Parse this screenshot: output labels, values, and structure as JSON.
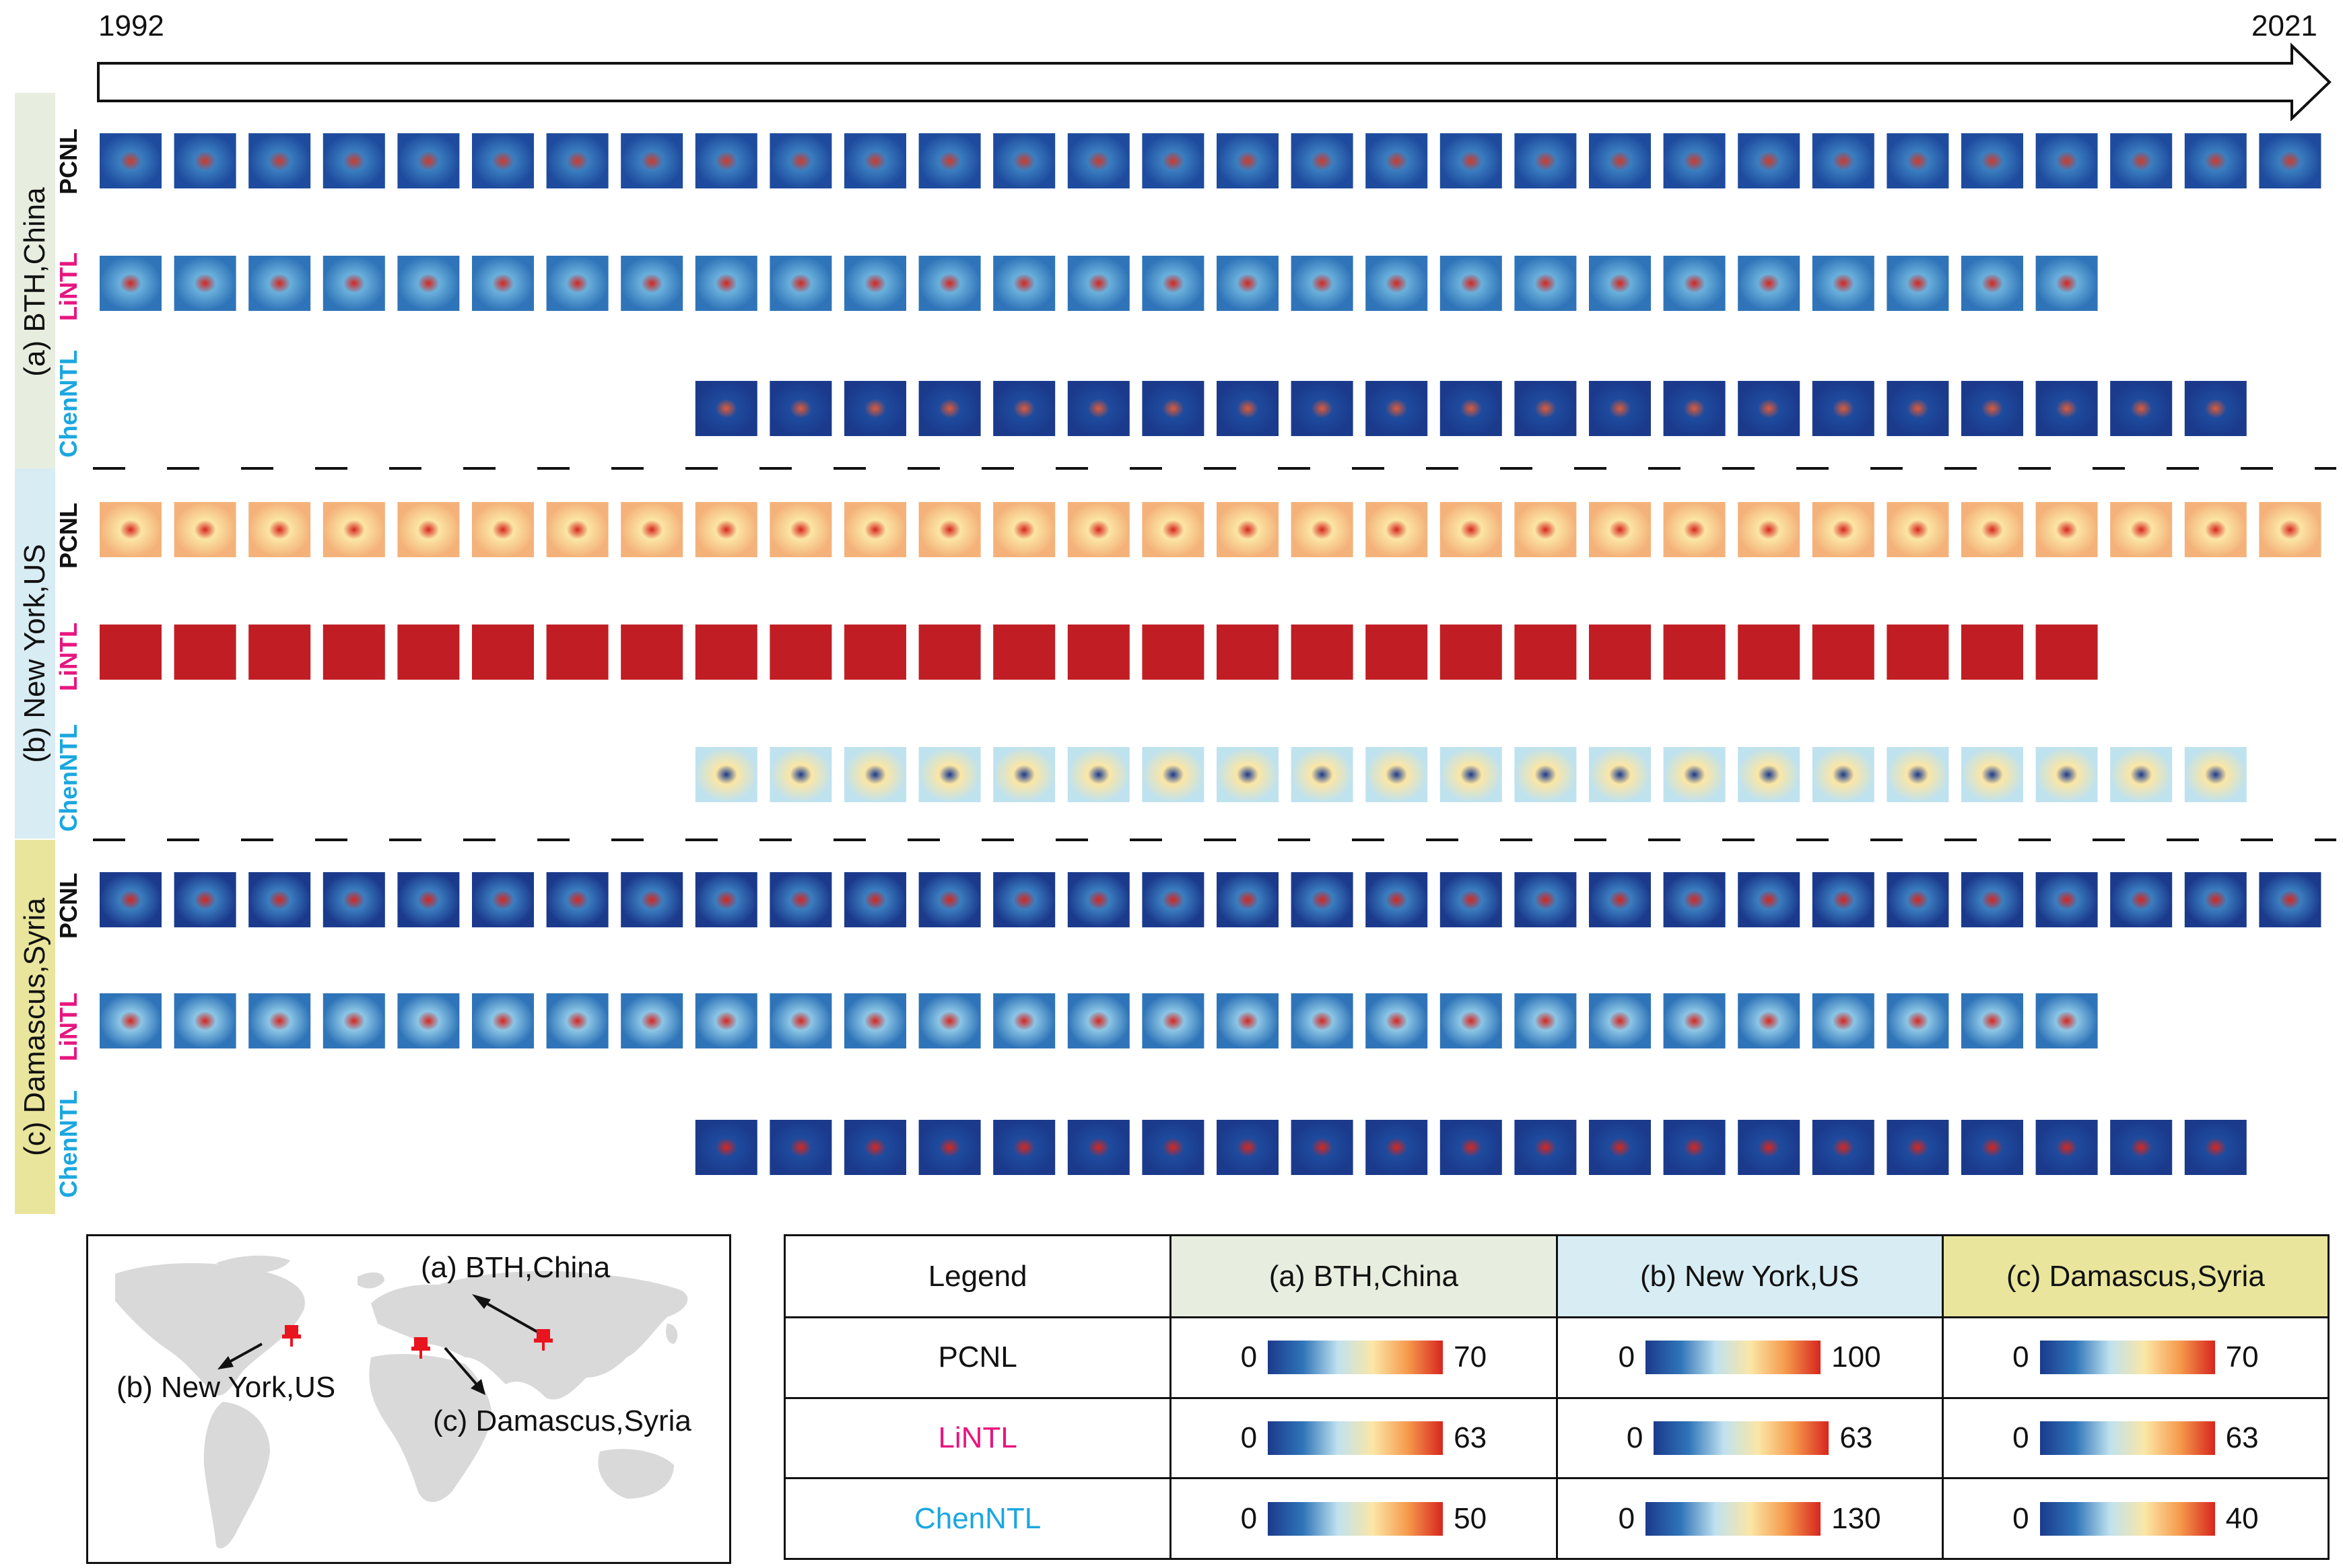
{
  "timeline": {
    "start_year": "1992",
    "end_year": "2021"
  },
  "bands": [
    {
      "id": "a",
      "label": "(a) BTH,China",
      "color": "#e8eedf",
      "rows": [
        {
          "product": "PCNL",
          "product_color": "#111111",
          "scheme": "bth",
          "first": 0,
          "count": 30,
          "pattern": "pcnl_bth"
        },
        {
          "product": "LiNTL",
          "product_color": "#e8157f",
          "scheme": "bth",
          "first": 0,
          "count": 27,
          "pattern": "lintl_bth"
        },
        {
          "product": "ChenNTL",
          "product_color": "#1aa7e0",
          "scheme": "bth",
          "first": 8,
          "count": 21,
          "pattern": "chen_bth"
        }
      ]
    },
    {
      "id": "b",
      "label": "(b) New York,US",
      "color": "#d7ecf3",
      "rows": [
        {
          "product": "PCNL",
          "product_color": "#111111",
          "scheme": "ny",
          "first": 0,
          "count": 30,
          "pattern": "pcnl_ny"
        },
        {
          "product": "LiNTL",
          "product_color": "#e8157f",
          "scheme": "ny",
          "first": 0,
          "count": 27,
          "pattern": "lintl_ny"
        },
        {
          "product": "ChenNTL",
          "product_color": "#1aa7e0",
          "scheme": "ny",
          "first": 8,
          "count": 21,
          "pattern": "chen_ny"
        }
      ]
    },
    {
      "id": "c",
      "label": "(c) Damascus,Syria",
      "color": "#e9e59c",
      "rows": [
        {
          "product": "PCNL",
          "product_color": "#111111",
          "scheme": "dam",
          "first": 0,
          "count": 30,
          "pattern": "pcnl_dam"
        },
        {
          "product": "LiNTL",
          "product_color": "#e8157f",
          "scheme": "dam",
          "first": 0,
          "count": 27,
          "pattern": "lintl_dam"
        },
        {
          "product": "ChenNTL",
          "product_color": "#1aa7e0",
          "scheme": "dam",
          "first": 8,
          "count": 21,
          "pattern": "chen_dam"
        }
      ]
    }
  ],
  "map": {
    "labels": {
      "bth": "(a) BTH,China",
      "ny": "(b) New York,US",
      "dam": "(c) Damascus,Syria"
    },
    "marker_color": "#e8141e"
  },
  "legend": {
    "header": "Legend",
    "columns": [
      {
        "label": "(a) BTH,China",
        "color": "#e8eedf"
      },
      {
        "label": "(b) New York,US",
        "color": "#d7ecf3"
      },
      {
        "label": "(c) Damascus,Syria",
        "color": "#e9e59c"
      }
    ],
    "rows": [
      {
        "product": "PCNL",
        "color": "#111111",
        "ranges": [
          {
            "min": "0",
            "max": "70"
          },
          {
            "min": "0",
            "max": "100"
          },
          {
            "min": "0",
            "max": "70"
          }
        ]
      },
      {
        "product": "LiNTL",
        "color": "#e8157f",
        "ranges": [
          {
            "min": "0",
            "max": "63"
          },
          {
            "min": "0",
            "max": "63"
          },
          {
            "min": "0",
            "max": "63"
          }
        ]
      },
      {
        "product": "ChenNTL",
        "color": "#1aa7e0",
        "ranges": [
          {
            "min": "0",
            "max": "50"
          },
          {
            "min": "0",
            "max": "130"
          },
          {
            "min": "0",
            "max": "40"
          }
        ]
      }
    ],
    "colormap": [
      "#1b3a8c",
      "#2f74b8",
      "#bfe2ef",
      "#fbe6a5",
      "#f59a4c",
      "#d7261e"
    ]
  }
}
